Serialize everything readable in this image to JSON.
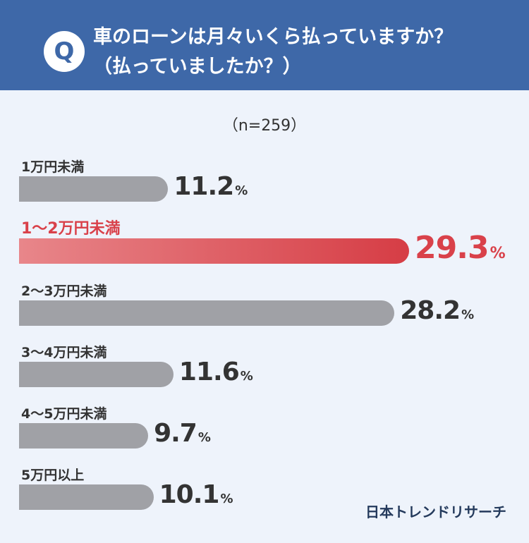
{
  "question": {
    "badge": "Q",
    "line1": "車のローンは月々いくら払っていますか？",
    "line2": "（払っていましたか？）"
  },
  "sample_size": "（n=259）",
  "brand": "日本トレンドリサーチ",
  "colors": {
    "header": "#3e68a8",
    "bar_default": "#a0a1a6",
    "bar_highlight": "#d63d45",
    "highlight_text": "#d9414a"
  },
  "chart_data": {
    "type": "bar",
    "orientation": "horizontal",
    "categories": [
      "1万円未満",
      "1〜2万円未満",
      "2〜3万円未満",
      "3〜4万円未満",
      "4〜5万円未満",
      "5万円以上"
    ],
    "values": [
      11.2,
      29.3,
      28.2,
      11.6,
      9.7,
      10.1
    ],
    "value_labels": [
      "11.2",
      "29.3",
      "28.2",
      "11.6",
      "9.7",
      "10.1"
    ],
    "unit": "%",
    "highlight_index": 1
  }
}
